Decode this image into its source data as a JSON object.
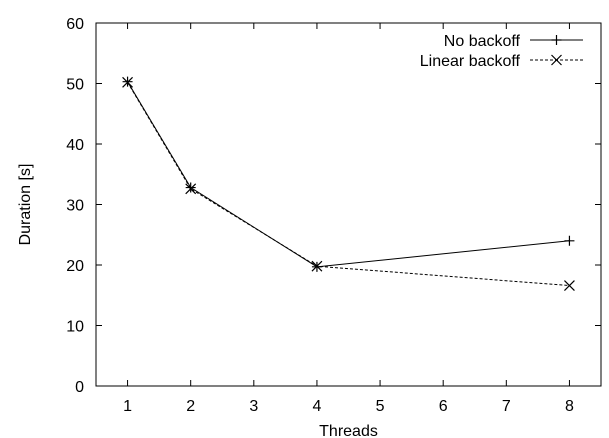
{
  "chart_data": {
    "type": "line",
    "title": "",
    "xlabel": "Threads",
    "ylabel": "Duration [s]",
    "categories": [
      "1",
      "2",
      "3",
      "4",
      "5",
      "6",
      "7",
      "8"
    ],
    "xlim": [
      0.5,
      8.5
    ],
    "ylim": [
      0,
      60
    ],
    "yticks": [
      "0",
      "10",
      "20",
      "30",
      "40",
      "50",
      "60"
    ],
    "grid": false,
    "legend_position": "top-right",
    "series": [
      {
        "name": "No backoff",
        "marker": "plus",
        "line_style": "solid",
        "x": [
          1,
          2,
          4,
          8
        ],
        "y": [
          50.3,
          32.8,
          19.7,
          24.0
        ]
      },
      {
        "name": "Linear backoff",
        "marker": "cross",
        "line_style": "dashed",
        "x": [
          1,
          2,
          4,
          8
        ],
        "y": [
          50.2,
          32.6,
          19.8,
          16.6
        ]
      }
    ]
  }
}
